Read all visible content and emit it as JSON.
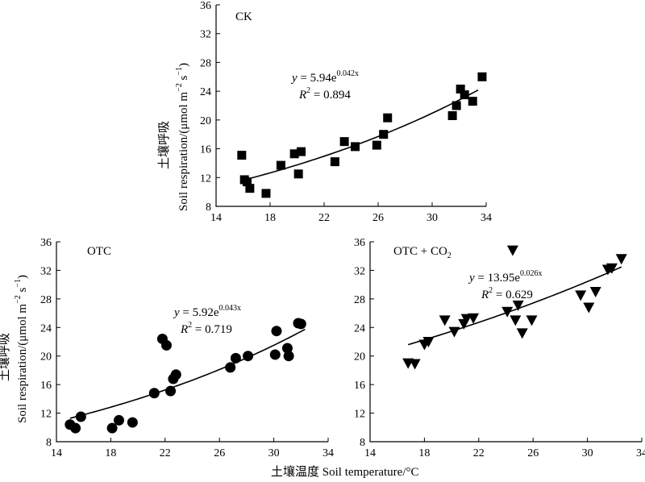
{
  "figure": {
    "ylabel_cn": "土壤呼吸",
    "ylabel_en": "Soil respiration/(μmol m",
    "ylabel_sup1": "−2",
    "ylabel_mid": " s",
    "ylabel_sup2": "−1",
    "ylabel_end": ")",
    "xlabel_cn": "土壤温度",
    "xlabel_en": "Soil temperature/°C"
  },
  "chart_data": [
    {
      "type": "scatter",
      "panel_label": "CK",
      "marker": "square",
      "x_ticks": [
        "14",
        "18",
        "22",
        "26",
        "30",
        "34"
      ],
      "y_ticks": [
        "8",
        "12",
        "16",
        "20",
        "24",
        "28",
        "32",
        "36"
      ],
      "xlim": [
        14,
        34
      ],
      "ylim": [
        8,
        36
      ],
      "equation": {
        "y": "y",
        "eq": " = 5.94e",
        "exp": "0.042x",
        "r2_label": "R",
        "r2_sup": "2",
        "r2_value": " = 0.894"
      },
      "fit": {
        "a": 5.94,
        "b": 0.042,
        "x_range": [
          16.2,
          33.4
        ]
      },
      "points": [
        {
          "x": 15.9,
          "y": 15.1
        },
        {
          "x": 16.1,
          "y": 11.7
        },
        {
          "x": 16.3,
          "y": 11.4
        },
        {
          "x": 16.5,
          "y": 10.5
        },
        {
          "x": 17.7,
          "y": 9.8
        },
        {
          "x": 18.8,
          "y": 13.7
        },
        {
          "x": 19.8,
          "y": 15.3
        },
        {
          "x": 20.1,
          "y": 12.5
        },
        {
          "x": 20.3,
          "y": 15.6
        },
        {
          "x": 22.8,
          "y": 14.2
        },
        {
          "x": 23.5,
          "y": 17.0
        },
        {
          "x": 24.3,
          "y": 16.3
        },
        {
          "x": 25.9,
          "y": 16.5
        },
        {
          "x": 26.4,
          "y": 18.0
        },
        {
          "x": 26.7,
          "y": 20.3
        },
        {
          "x": 31.5,
          "y": 20.6
        },
        {
          "x": 31.8,
          "y": 22.0
        },
        {
          "x": 32.1,
          "y": 24.3
        },
        {
          "x": 32.4,
          "y": 23.5
        },
        {
          "x": 33.0,
          "y": 22.6
        },
        {
          "x": 33.7,
          "y": 26.0
        }
      ]
    },
    {
      "type": "scatter",
      "panel_label": "OTC",
      "marker": "circle",
      "x_ticks": [
        "14",
        "18",
        "22",
        "26",
        "30",
        "34"
      ],
      "y_ticks": [
        "8",
        "12",
        "16",
        "20",
        "24",
        "28",
        "32",
        "36"
      ],
      "xlim": [
        14,
        34
      ],
      "ylim": [
        8,
        36
      ],
      "equation": {
        "y": "y",
        "eq": " = 5.92e",
        "exp": "0.043x",
        "r2_label": "R",
        "r2_sup": "2",
        "r2_value": " = 0.719"
      },
      "fit": {
        "a": 5.92,
        "b": 0.043,
        "x_range": [
          15.0,
          32.3
        ]
      },
      "points": [
        {
          "x": 15.0,
          "y": 10.4
        },
        {
          "x": 15.4,
          "y": 9.9
        },
        {
          "x": 15.8,
          "y": 11.5
        },
        {
          "x": 18.1,
          "y": 9.9
        },
        {
          "x": 18.6,
          "y": 11.0
        },
        {
          "x": 19.6,
          "y": 10.7
        },
        {
          "x": 21.2,
          "y": 14.8
        },
        {
          "x": 21.8,
          "y": 22.4
        },
        {
          "x": 22.1,
          "y": 21.5
        },
        {
          "x": 22.4,
          "y": 15.1
        },
        {
          "x": 22.6,
          "y": 16.8
        },
        {
          "x": 22.8,
          "y": 17.4
        },
        {
          "x": 26.8,
          "y": 18.4
        },
        {
          "x": 27.2,
          "y": 19.7
        },
        {
          "x": 28.1,
          "y": 20.0
        },
        {
          "x": 30.1,
          "y": 20.2
        },
        {
          "x": 30.2,
          "y": 23.5
        },
        {
          "x": 31.0,
          "y": 21.1
        },
        {
          "x": 31.1,
          "y": 20.0
        },
        {
          "x": 31.8,
          "y": 24.6
        },
        {
          "x": 32.0,
          "y": 24.5
        }
      ]
    },
    {
      "type": "scatter",
      "panel_label": "OTC + CO",
      "panel_label_sub": "2",
      "marker": "triangle-down",
      "x_ticks": [
        "14",
        "18",
        "22",
        "26",
        "30",
        "34"
      ],
      "y_ticks": [
        "8",
        "12",
        "16",
        "20",
        "24",
        "28",
        "32",
        "36"
      ],
      "xlim": [
        14,
        34
      ],
      "ylim": [
        8,
        36
      ],
      "equation": {
        "y": "y",
        "eq": " = 13.95e",
        "exp": "0.026x",
        "r2_label": "R",
        "r2_sup": "2",
        "r2_value": " = 0.629"
      },
      "fit": {
        "a": 13.95,
        "b": 0.026,
        "x_range": [
          16.8,
          32.5
        ]
      },
      "points": [
        {
          "x": 16.8,
          "y": 19.0
        },
        {
          "x": 17.3,
          "y": 18.9
        },
        {
          "x": 18.0,
          "y": 21.6
        },
        {
          "x": 18.3,
          "y": 22.0
        },
        {
          "x": 19.5,
          "y": 25.0
        },
        {
          "x": 20.2,
          "y": 23.4
        },
        {
          "x": 20.9,
          "y": 24.5
        },
        {
          "x": 21.1,
          "y": 25.2
        },
        {
          "x": 21.6,
          "y": 25.3
        },
        {
          "x": 24.1,
          "y": 26.2
        },
        {
          "x": 24.5,
          "y": 34.8
        },
        {
          "x": 24.7,
          "y": 25.0
        },
        {
          "x": 24.9,
          "y": 27.1
        },
        {
          "x": 25.2,
          "y": 23.2
        },
        {
          "x": 25.9,
          "y": 25.0
        },
        {
          "x": 29.5,
          "y": 28.5
        },
        {
          "x": 30.1,
          "y": 26.8
        },
        {
          "x": 30.6,
          "y": 29.0
        },
        {
          "x": 31.5,
          "y": 32.1
        },
        {
          "x": 31.8,
          "y": 32.3
        },
        {
          "x": 32.5,
          "y": 33.6
        }
      ]
    }
  ]
}
